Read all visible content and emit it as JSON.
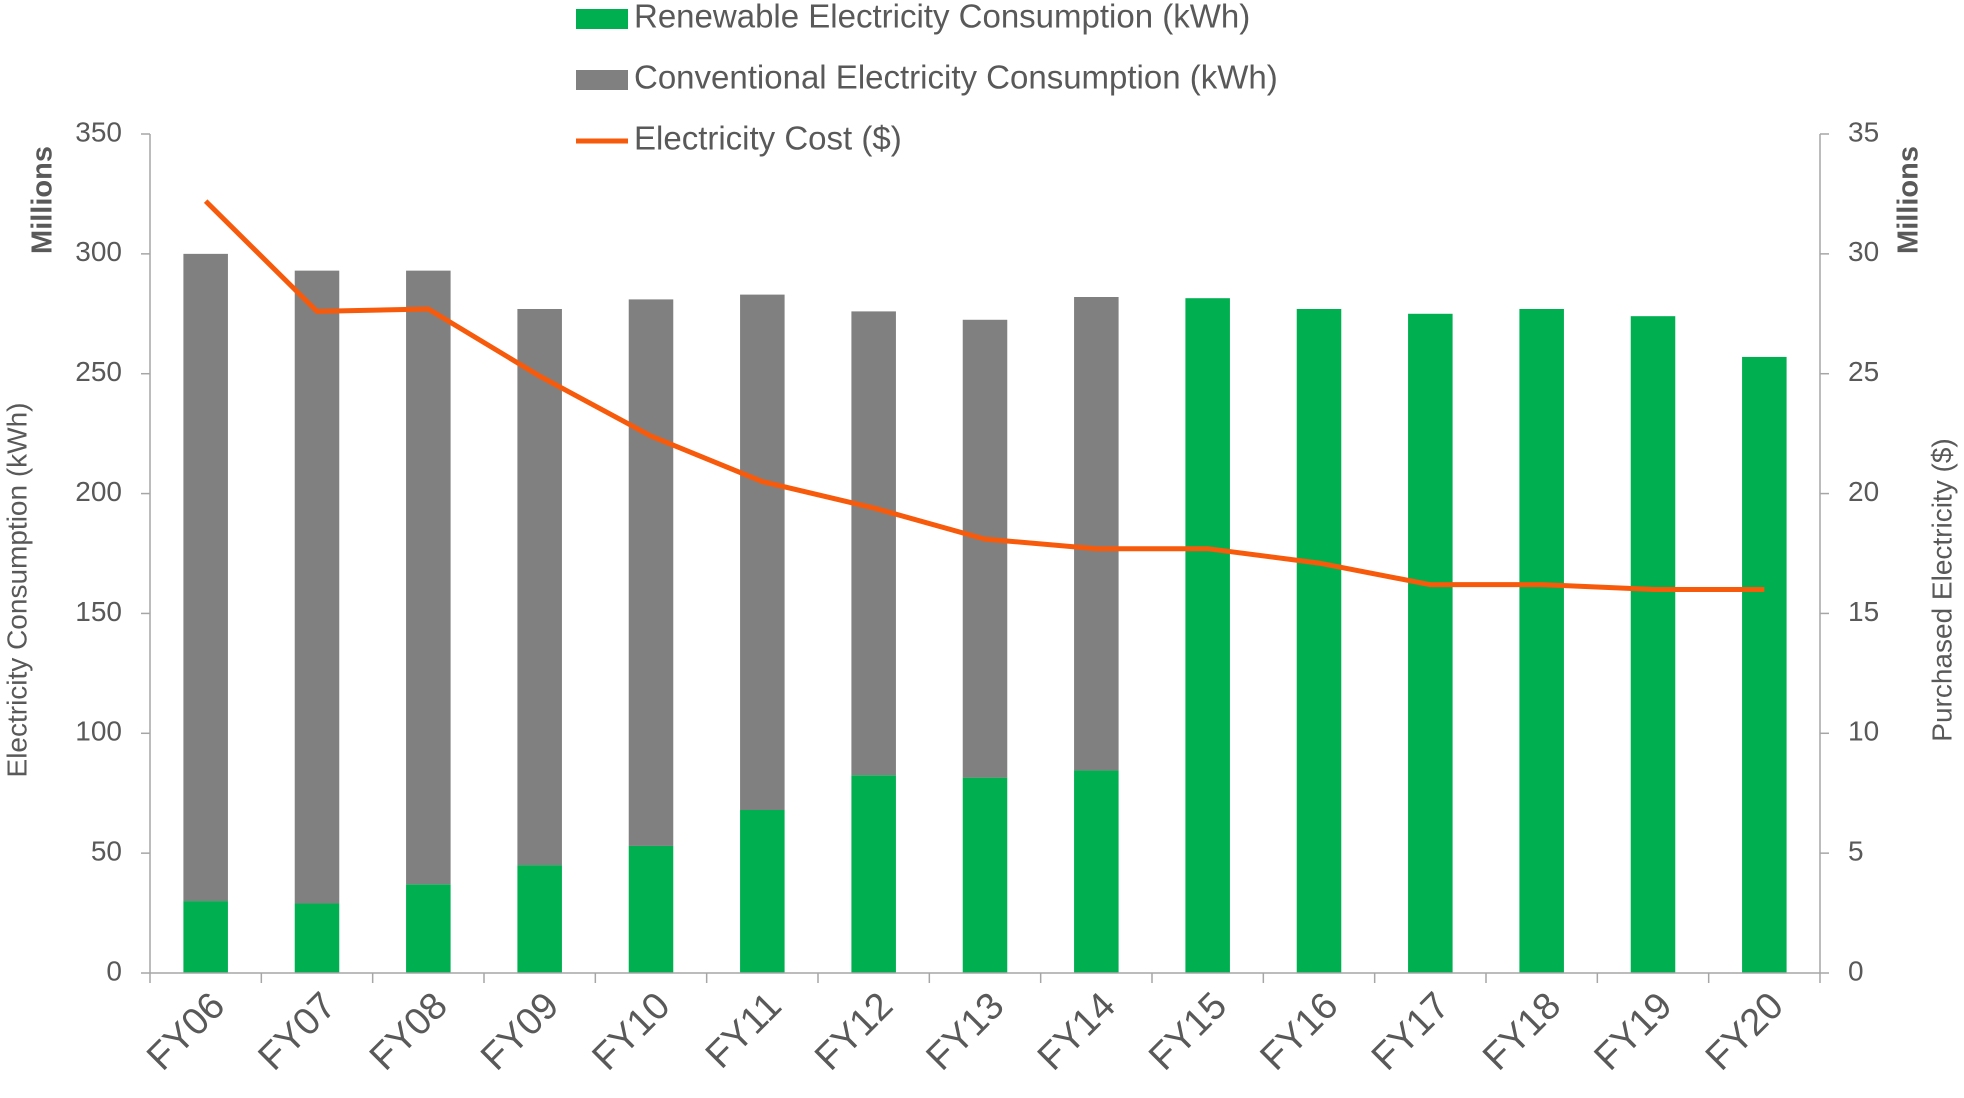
{
  "chart_data": {
    "type": "bar",
    "y_label": "Electricity Consumption (kWh)",
    "y2_label": "Purchased Electricity ($)",
    "y_unit": "Millions",
    "y2_unit": "Millions",
    "categories": [
      "FY06",
      "FY07",
      "FY08",
      "FY09",
      "FY10",
      "FY11",
      "FY12",
      "FY13",
      "FY14",
      "FY15",
      "FY16",
      "FY17",
      "FY18",
      "FY19",
      "FY20"
    ],
    "series": [
      {
        "name": "Renewable Electricity Consumption (kWh)",
        "color": "#00b050",
        "stack": true,
        "values": [
          30,
          29,
          37,
          45,
          53,
          68,
          82.5,
          81.5,
          84.5,
          281.5,
          277,
          275,
          277,
          274,
          257
        ]
      },
      {
        "name": "Conventional Electricity Consumption (kWh)",
        "color": "#808080",
        "stack": true,
        "values": [
          270,
          264,
          256,
          232,
          228,
          215,
          193.5,
          191,
          197.5,
          0,
          0,
          0,
          0,
          0,
          0
        ]
      },
      {
        "name": "Electricity Cost ($)",
        "color": "#f75a0a",
        "type": "line",
        "axis": "y2",
        "values": [
          32.2,
          27.6,
          27.7,
          24.9,
          22.4,
          20.5,
          19.4,
          18.1,
          17.7,
          17.7,
          17.1,
          16.2,
          16.2,
          16.0,
          16.0
        ]
      }
    ],
    "ylim": [
      0,
      350
    ],
    "yticks": [
      0,
      50,
      100,
      150,
      200,
      250,
      300,
      350
    ],
    "y2lim": [
      0,
      35
    ],
    "y2ticks": [
      0,
      5,
      10,
      15,
      20,
      25,
      30,
      35
    ],
    "legend": "top"
  }
}
